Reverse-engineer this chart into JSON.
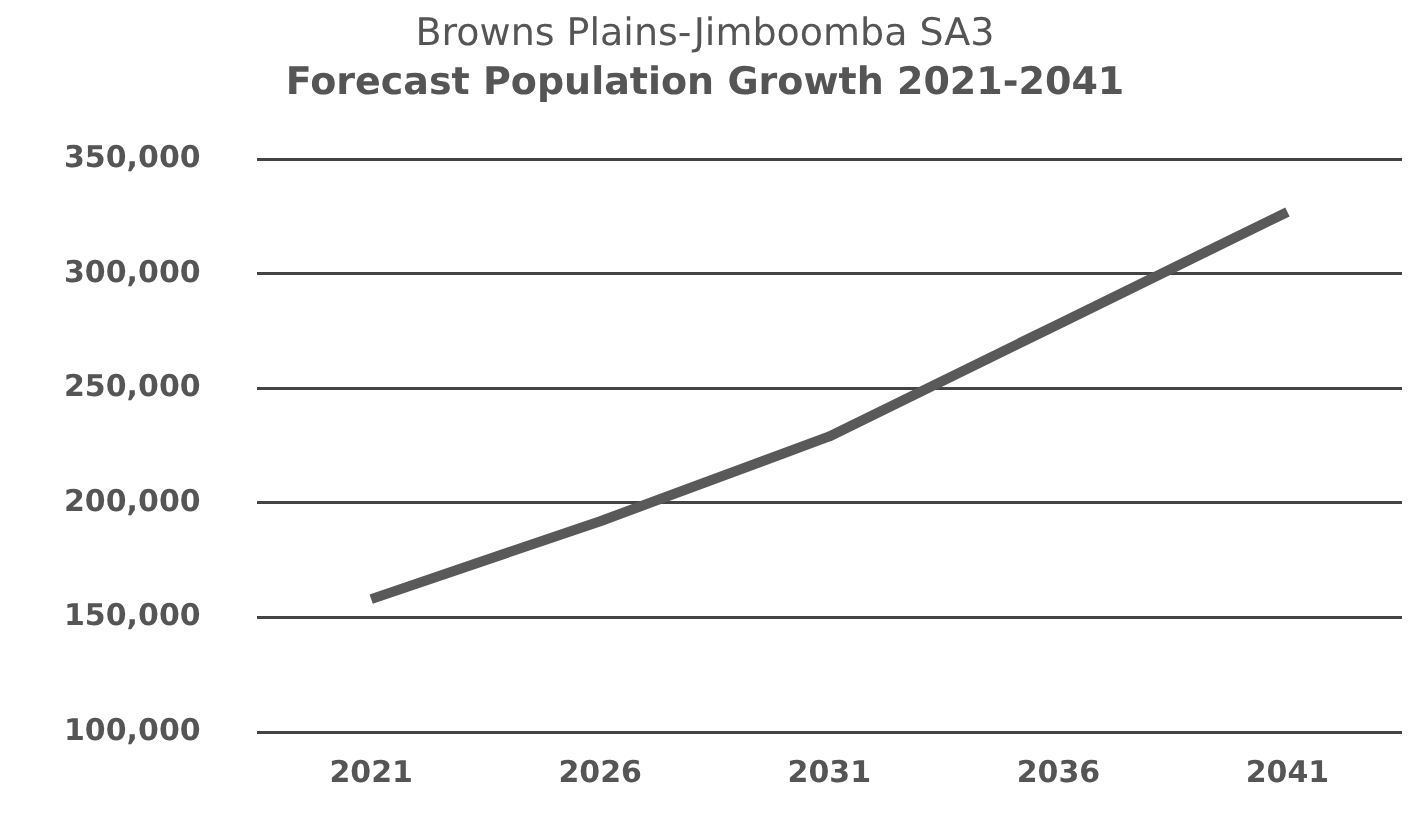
{
  "chart_data": {
    "type": "line",
    "title": "Browns Plains-Jimboomba SA3",
    "subtitle": "Forecast Population Growth 2021-2041",
    "categories": [
      "2021",
      "2026",
      "2031",
      "2036",
      "2041"
    ],
    "series": [
      {
        "color": "#595959",
        "values": [
          158000,
          192000,
          229000,
          278000,
          327000
        ]
      }
    ],
    "ylim": [
      100000,
      350000
    ],
    "yticks": [
      {
        "value": 100000,
        "label": "100,000"
      },
      {
        "value": 150000,
        "label": "150,000"
      },
      {
        "value": 200000,
        "label": "200,000"
      },
      {
        "value": 250000,
        "label": "250,000"
      },
      {
        "value": 300000,
        "label": "300,000"
      },
      {
        "value": 350000,
        "label": "350,000"
      }
    ],
    "grid": "y",
    "legend": false,
    "marker": "none",
    "line_style": "solid"
  }
}
